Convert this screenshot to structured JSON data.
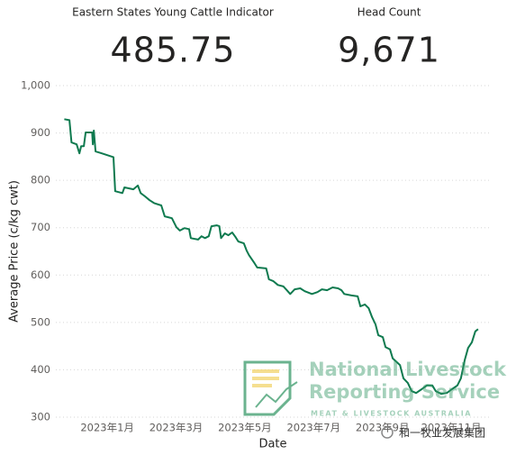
{
  "kpis": [
    {
      "title": "Eastern States Young Cattle Indicator",
      "value": "485.75"
    },
    {
      "title": "Head Count",
      "value": "9,671"
    }
  ],
  "watermark": {
    "line1": "National Livestock",
    "line2": "Reporting Service",
    "sub": "MEAT & LIVESTOCK AUSTRALIA",
    "wechat": "和一牧业发展集团"
  },
  "chart_data": {
    "type": "line",
    "xlabel": "Date",
    "ylabel": "Average Price (c/kg cwt)",
    "grid": true,
    "color": "#0f7a4f",
    "xlim": [
      -0.6,
      12.15
    ],
    "xticks": [
      {
        "value": 1,
        "label": "2023年1月"
      },
      {
        "value": 3,
        "label": "2023年3月"
      },
      {
        "value": 5,
        "label": "2023年5月"
      },
      {
        "value": 7,
        "label": "2023年7月"
      },
      {
        "value": 9,
        "label": "2023年9月"
      },
      {
        "value": 11,
        "label": "2023年11月"
      }
    ],
    "ylim": [
      300,
      1000
    ],
    "yticks": [
      300,
      400,
      500,
      600,
      700,
      800,
      900,
      {
        "value": 1000,
        "label": "1,000"
      }
    ],
    "x": [
      -0.25,
      -0.1,
      -0.04,
      0.11,
      0.19,
      0.24,
      0.32,
      0.37,
      0.56,
      0.58,
      0.61,
      0.66,
      0.84,
      1.18,
      1.23,
      1.44,
      1.5,
      1.76,
      1.89,
      1.97,
      2.1,
      2.23,
      2.36,
      2.57,
      2.67,
      2.88,
      3.01,
      3.11,
      3.24,
      3.38,
      3.43,
      3.64,
      3.74,
      3.84,
      3.95,
      4.03,
      4.18,
      4.26,
      4.31,
      4.42,
      4.52,
      4.63,
      4.73,
      4.81,
      4.97,
      5.05,
      5.12,
      5.28,
      5.36,
      5.62,
      5.7,
      5.83,
      5.96,
      6.12,
      6.22,
      6.32,
      6.45,
      6.61,
      6.74,
      6.95,
      7.11,
      7.24,
      7.39,
      7.55,
      7.71,
      7.81,
      7.89,
      8.1,
      8.28,
      8.36,
      8.49,
      8.6,
      8.7,
      8.8,
      8.88,
      9.01,
      9.09,
      9.22,
      9.3,
      9.51,
      9.61,
      9.74,
      9.85,
      9.98,
      10.14,
      10.29,
      10.45,
      10.55,
      10.71,
      10.87,
      11.02,
      11.18,
      11.28,
      11.39,
      11.49,
      11.6,
      11.7,
      11.78
    ],
    "values": [
      929,
      927,
      880,
      876,
      857,
      872,
      872,
      901,
      901,
      876,
      905,
      861,
      857,
      849,
      777,
      773,
      785,
      781,
      789,
      773,
      766,
      758,
      752,
      747,
      724,
      720,
      701,
      694,
      699,
      697,
      678,
      675,
      682,
      678,
      682,
      703,
      705,
      703,
      678,
      688,
      684,
      690,
      680,
      671,
      667,
      652,
      642,
      625,
      616,
      614,
      591,
      587,
      579,
      576,
      568,
      560,
      570,
      572,
      566,
      560,
      564,
      570,
      568,
      574,
      572,
      568,
      560,
      557,
      555,
      534,
      538,
      530,
      511,
      496,
      473,
      469,
      448,
      443,
      424,
      410,
      382,
      372,
      355,
      351,
      359,
      367,
      367,
      355,
      349,
      351,
      359,
      367,
      382,
      420,
      446,
      458,
      481,
      485.75
    ]
  }
}
